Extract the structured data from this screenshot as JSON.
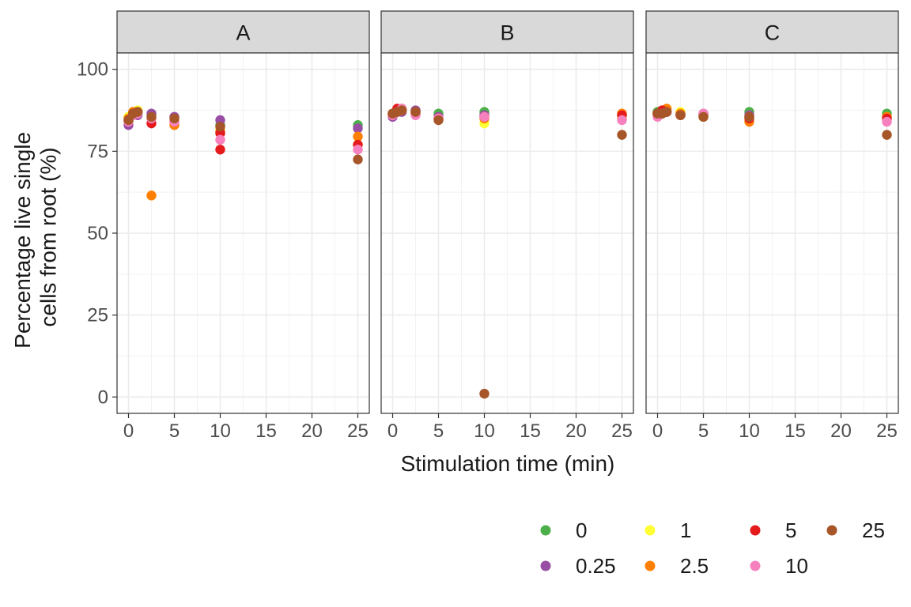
{
  "chart_data": {
    "type": "scatter",
    "xlabel": "Stimulation time (min)",
    "ylabel_lines": [
      "Percentage live single",
      "cells from root (%)"
    ],
    "xlim": [
      -1.25,
      26.25
    ],
    "ylim": [
      -5,
      105
    ],
    "x_ticks": [
      0,
      5,
      10,
      15,
      20,
      25
    ],
    "x_tick_labels": [
      "0",
      "5",
      "10",
      "15",
      "20",
      "25"
    ],
    "y_ticks": [
      0,
      25,
      50,
      75,
      100
    ],
    "y_tick_labels": [
      "0",
      "25",
      "50",
      "75",
      "100"
    ],
    "grid": true,
    "legend_position": "bottom",
    "series": [
      {
        "name": "0",
        "color": "#4DAF4A"
      },
      {
        "name": "0.25",
        "color": "#984EA3"
      },
      {
        "name": "1",
        "color": "#FFFF33"
      },
      {
        "name": "2.5",
        "color": "#FF7F00"
      },
      {
        "name": "5",
        "color": "#E41A1C"
      },
      {
        "name": "10",
        "color": "#F781BF"
      },
      {
        "name": "25",
        "color": "#A65628"
      }
    ],
    "panels": [
      {
        "label": "A",
        "points": [
          {
            "series": "0",
            "x": 0,
            "y": 84
          },
          {
            "series": "0",
            "x": 0.5,
            "y": 86
          },
          {
            "series": "0",
            "x": 1,
            "y": 87
          },
          {
            "series": "0",
            "x": 2.5,
            "y": 86
          },
          {
            "series": "0",
            "x": 5,
            "y": 85
          },
          {
            "series": "0",
            "x": 10,
            "y": 83
          },
          {
            "series": "0",
            "x": 25,
            "y": 83
          },
          {
            "series": "0.25",
            "x": 0,
            "y": 83
          },
          {
            "series": "0.25",
            "x": 0.5,
            "y": 86
          },
          {
            "series": "0.25",
            "x": 1,
            "y": 86
          },
          {
            "series": "0.25",
            "x": 2.5,
            "y": 86.5
          },
          {
            "series": "0.25",
            "x": 5,
            "y": 85.5
          },
          {
            "series": "0.25",
            "x": 10,
            "y": 84.5
          },
          {
            "series": "0.25",
            "x": 25,
            "y": 82
          },
          {
            "series": "1",
            "x": 0,
            "y": 85.5
          },
          {
            "series": "1",
            "x": 0.5,
            "y": 87
          },
          {
            "series": "1",
            "x": 1,
            "y": 87.5
          },
          {
            "series": "1",
            "x": 2.5,
            "y": 85
          },
          {
            "series": "1",
            "x": 5,
            "y": 84
          },
          {
            "series": "1",
            "x": 10,
            "y": 82
          },
          {
            "series": "1",
            "x": 25,
            "y": 77
          },
          {
            "series": "2.5",
            "x": 0,
            "y": 85
          },
          {
            "series": "2.5",
            "x": 0.5,
            "y": 87
          },
          {
            "series": "2.5",
            "x": 1,
            "y": 87
          },
          {
            "series": "2.5",
            "x": 2.5,
            "y": 61.5
          },
          {
            "series": "2.5",
            "x": 5,
            "y": 83
          },
          {
            "series": "2.5",
            "x": 10,
            "y": 81
          },
          {
            "series": "2.5",
            "x": 25,
            "y": 79.5
          },
          {
            "series": "5",
            "x": 0,
            "y": 84.5
          },
          {
            "series": "5",
            "x": 0.5,
            "y": 86.5
          },
          {
            "series": "5",
            "x": 1,
            "y": 87
          },
          {
            "series": "5",
            "x": 2.5,
            "y": 83.5
          },
          {
            "series": "5",
            "x": 5,
            "y": 84
          },
          {
            "series": "5",
            "x": 10,
            "y": 75.5
          },
          {
            "series": "5",
            "x": 10,
            "y": 80.5
          },
          {
            "series": "5",
            "x": 25,
            "y": 77
          },
          {
            "series": "10",
            "x": 0,
            "y": 84
          },
          {
            "series": "10",
            "x": 0.5,
            "y": 86
          },
          {
            "series": "10",
            "x": 1,
            "y": 86.5
          },
          {
            "series": "10",
            "x": 2.5,
            "y": 85
          },
          {
            "series": "10",
            "x": 5,
            "y": 84
          },
          {
            "series": "10",
            "x": 10,
            "y": 78.5
          },
          {
            "series": "10",
            "x": 25,
            "y": 75.5
          },
          {
            "series": "25",
            "x": 0,
            "y": 84.5
          },
          {
            "series": "25",
            "x": 0.5,
            "y": 86.5
          },
          {
            "series": "25",
            "x": 1,
            "y": 87
          },
          {
            "series": "25",
            "x": 2.5,
            "y": 85.5
          },
          {
            "series": "25",
            "x": 5,
            "y": 85
          },
          {
            "series": "25",
            "x": 10,
            "y": 82.5
          },
          {
            "series": "25",
            "x": 25,
            "y": 72.5
          }
        ]
      },
      {
        "label": "B",
        "points": [
          {
            "series": "0",
            "x": 0,
            "y": 86
          },
          {
            "series": "0",
            "x": 0.5,
            "y": 87
          },
          {
            "series": "0",
            "x": 1,
            "y": 87.5
          },
          {
            "series": "0",
            "x": 2.5,
            "y": 87
          },
          {
            "series": "0",
            "x": 5,
            "y": 86.5
          },
          {
            "series": "0",
            "x": 10,
            "y": 87
          },
          {
            "series": "0",
            "x": 25,
            "y": 86
          },
          {
            "series": "0.25",
            "x": 0,
            "y": 85.5
          },
          {
            "series": "0.25",
            "x": 0.5,
            "y": 87
          },
          {
            "series": "0.25",
            "x": 1,
            "y": 87
          },
          {
            "series": "0.25",
            "x": 2.5,
            "y": 87.5
          },
          {
            "series": "0.25",
            "x": 5,
            "y": 85.5
          },
          {
            "series": "0.25",
            "x": 10,
            "y": 86
          },
          {
            "series": "0.25",
            "x": 25,
            "y": 85
          },
          {
            "series": "1",
            "x": 0,
            "y": 86.5
          },
          {
            "series": "1",
            "x": 0.5,
            "y": 87
          },
          {
            "series": "1",
            "x": 1,
            "y": 87.5
          },
          {
            "series": "1",
            "x": 2.5,
            "y": 86.5
          },
          {
            "series": "1",
            "x": 5,
            "y": 85
          },
          {
            "series": "1",
            "x": 10,
            "y": 83.5
          },
          {
            "series": "1",
            "x": 25,
            "y": 85.5
          },
          {
            "series": "2.5",
            "x": 0,
            "y": 86
          },
          {
            "series": "2.5",
            "x": 0.5,
            "y": 87.5
          },
          {
            "series": "2.5",
            "x": 1,
            "y": 88
          },
          {
            "series": "2.5",
            "x": 2.5,
            "y": 86.5
          },
          {
            "series": "2.5",
            "x": 5,
            "y": 85
          },
          {
            "series": "2.5",
            "x": 10,
            "y": 85
          },
          {
            "series": "2.5",
            "x": 25,
            "y": 86.5
          },
          {
            "series": "5",
            "x": 0,
            "y": 86.5
          },
          {
            "series": "5",
            "x": 0.5,
            "y": 88
          },
          {
            "series": "5",
            "x": 1,
            "y": 87.5
          },
          {
            "series": "5",
            "x": 2.5,
            "y": 87
          },
          {
            "series": "5",
            "x": 5,
            "y": 85
          },
          {
            "series": "5",
            "x": 10,
            "y": 85.5
          },
          {
            "series": "5",
            "x": 25,
            "y": 86
          },
          {
            "series": "10",
            "x": 0,
            "y": 86
          },
          {
            "series": "10",
            "x": 0.5,
            "y": 87
          },
          {
            "series": "10",
            "x": 1,
            "y": 88
          },
          {
            "series": "10",
            "x": 2.5,
            "y": 86
          },
          {
            "series": "10",
            "x": 5,
            "y": 85
          },
          {
            "series": "10",
            "x": 10,
            "y": 85.5
          },
          {
            "series": "10",
            "x": 25,
            "y": 84.5
          },
          {
            "series": "25",
            "x": 0,
            "y": 86.5
          },
          {
            "series": "25",
            "x": 0.5,
            "y": 87
          },
          {
            "series": "25",
            "x": 1,
            "y": 87.5
          },
          {
            "series": "25",
            "x": 2.5,
            "y": 87
          },
          {
            "series": "25",
            "x": 5,
            "y": 84.5
          },
          {
            "series": "25",
            "x": 10,
            "y": 1
          },
          {
            "series": "25",
            "x": 25,
            "y": 80
          }
        ]
      },
      {
        "label": "C",
        "points": [
          {
            "series": "0",
            "x": 0,
            "y": 87
          },
          {
            "series": "0",
            "x": 0.5,
            "y": 87
          },
          {
            "series": "0",
            "x": 1,
            "y": 87.5
          },
          {
            "series": "0",
            "x": 2.5,
            "y": 86.5
          },
          {
            "series": "0",
            "x": 5,
            "y": 86
          },
          {
            "series": "0",
            "x": 10,
            "y": 87
          },
          {
            "series": "0",
            "x": 25,
            "y": 86.5
          },
          {
            "series": "0.25",
            "x": 0,
            "y": 86.5
          },
          {
            "series": "0.25",
            "x": 0.5,
            "y": 86.5
          },
          {
            "series": "0.25",
            "x": 1,
            "y": 87
          },
          {
            "series": "0.25",
            "x": 2.5,
            "y": 86
          },
          {
            "series": "0.25",
            "x": 5,
            "y": 86.5
          },
          {
            "series": "0.25",
            "x": 10,
            "y": 86
          },
          {
            "series": "0.25",
            "x": 25,
            "y": 85
          },
          {
            "series": "1",
            "x": 0,
            "y": 86
          },
          {
            "series": "1",
            "x": 0.5,
            "y": 87
          },
          {
            "series": "1",
            "x": 1,
            "y": 87.5
          },
          {
            "series": "1",
            "x": 2.5,
            "y": 87
          },
          {
            "series": "1",
            "x": 5,
            "y": 86
          },
          {
            "series": "1",
            "x": 10,
            "y": 85
          },
          {
            "series": "1",
            "x": 25,
            "y": 85
          },
          {
            "series": "2.5",
            "x": 0,
            "y": 86.5
          },
          {
            "series": "2.5",
            "x": 0.5,
            "y": 87.5
          },
          {
            "series": "2.5",
            "x": 1,
            "y": 88
          },
          {
            "series": "2.5",
            "x": 2.5,
            "y": 86.5
          },
          {
            "series": "2.5",
            "x": 5,
            "y": 85.5
          },
          {
            "series": "2.5",
            "x": 10,
            "y": 84
          },
          {
            "series": "2.5",
            "x": 25,
            "y": 85.5
          },
          {
            "series": "5",
            "x": 0,
            "y": 86.5
          },
          {
            "series": "5",
            "x": 0.5,
            "y": 87.5
          },
          {
            "series": "5",
            "x": 1,
            "y": 87
          },
          {
            "series": "5",
            "x": 2.5,
            "y": 86
          },
          {
            "series": "5",
            "x": 5,
            "y": 86
          },
          {
            "series": "5",
            "x": 10,
            "y": 85
          },
          {
            "series": "5",
            "x": 25,
            "y": 85
          },
          {
            "series": "10",
            "x": 0,
            "y": 85.5
          },
          {
            "series": "10",
            "x": 0.5,
            "y": 86.5
          },
          {
            "series": "10",
            "x": 1,
            "y": 87
          },
          {
            "series": "10",
            "x": 2.5,
            "y": 86
          },
          {
            "series": "10",
            "x": 5,
            "y": 86.5
          },
          {
            "series": "10",
            "x": 10,
            "y": 85.5
          },
          {
            "series": "10",
            "x": 25,
            "y": 84
          },
          {
            "series": "25",
            "x": 0,
            "y": 86.5
          },
          {
            "series": "25",
            "x": 0.5,
            "y": 86.5
          },
          {
            "series": "25",
            "x": 1,
            "y": 87
          },
          {
            "series": "25",
            "x": 2.5,
            "y": 86
          },
          {
            "series": "25",
            "x": 5,
            "y": 85.5
          },
          {
            "series": "25",
            "x": 10,
            "y": 85.5
          },
          {
            "series": "25",
            "x": 25,
            "y": 80
          }
        ]
      }
    ]
  }
}
